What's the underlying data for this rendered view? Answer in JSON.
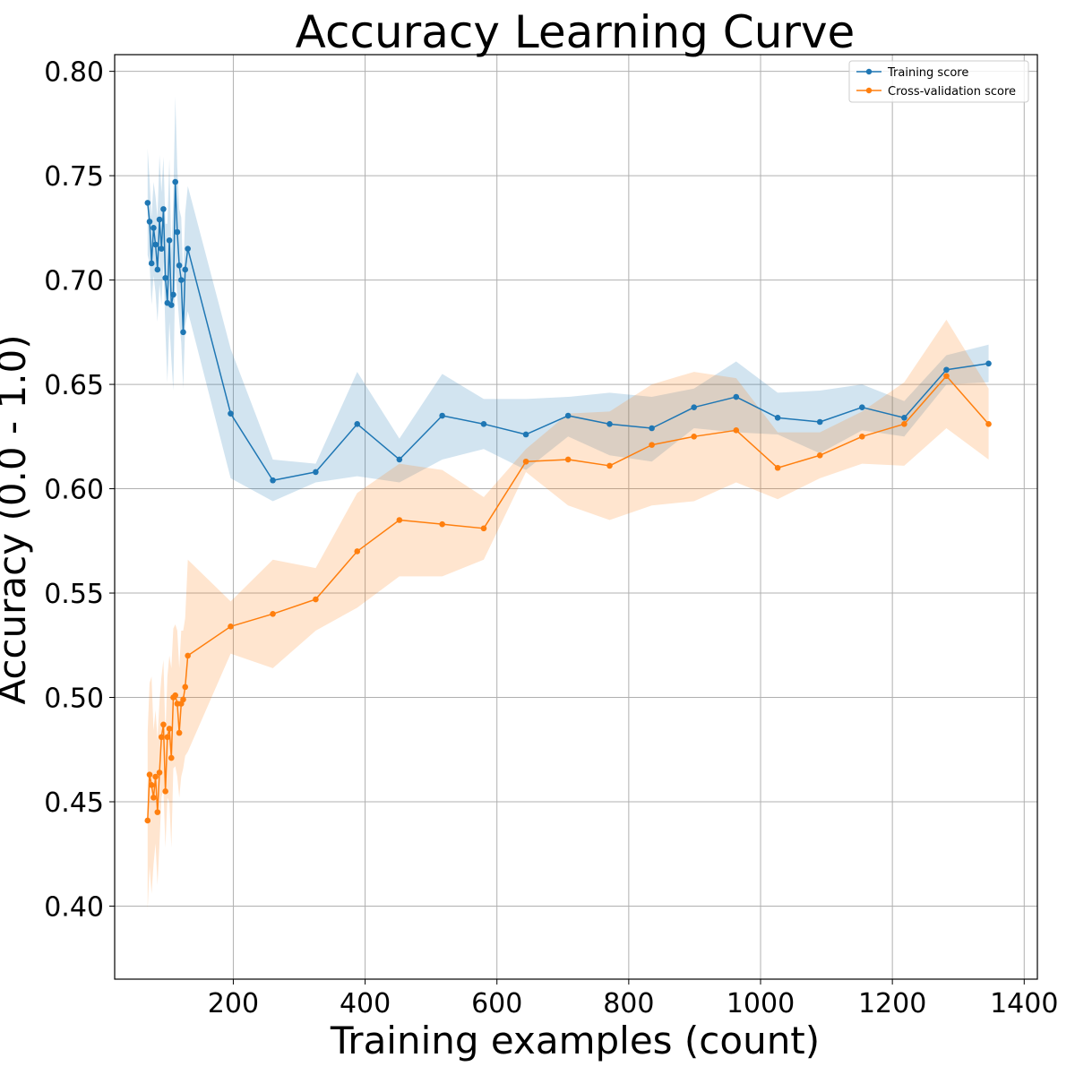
{
  "chart_data": {
    "type": "line",
    "title": "Accuracy Learning Curve",
    "xlabel": "Training examples (count)",
    "ylabel": "Accuracy (0.0 - 1.0)",
    "xlim": [
      20,
      1420
    ],
    "ylim": [
      0.365,
      0.808
    ],
    "xticks": [
      200,
      400,
      600,
      800,
      1000,
      1200,
      1400
    ],
    "yticks": [
      0.4,
      0.45,
      0.5,
      0.55,
      0.6,
      0.65,
      0.7,
      0.75,
      0.8
    ],
    "grid": true,
    "legend_position": "top-right",
    "series": [
      {
        "name": "Training score",
        "color": "#1f77b4",
        "band_color": "#1f77b4",
        "band_opacity": 0.2,
        "points": [
          [
            70,
            0.737,
            0.712,
            0.763
          ],
          [
            73,
            0.728,
            0.708,
            0.748
          ],
          [
            76,
            0.708,
            0.688,
            0.73
          ],
          [
            79,
            0.725,
            0.702,
            0.747
          ],
          [
            82,
            0.717,
            0.694,
            0.74
          ],
          [
            85,
            0.705,
            0.68,
            0.73
          ],
          [
            88,
            0.729,
            0.698,
            0.76
          ],
          [
            91,
            0.715,
            0.688,
            0.742
          ],
          [
            94,
            0.734,
            0.709,
            0.759
          ],
          [
            97,
            0.701,
            0.675,
            0.727
          ],
          [
            100,
            0.689,
            0.651,
            0.727
          ],
          [
            103,
            0.719,
            0.68,
            0.758
          ],
          [
            106,
            0.688,
            0.662,
            0.714
          ],
          [
            109,
            0.693,
            0.647,
            0.739
          ],
          [
            112,
            0.747,
            0.706,
            0.788
          ],
          [
            115,
            0.723,
            0.692,
            0.754
          ],
          [
            118,
            0.707,
            0.68,
            0.734
          ],
          [
            121,
            0.7,
            0.67,
            0.73
          ],
          [
            124,
            0.675,
            0.648,
            0.702
          ],
          [
            127,
            0.705,
            0.678,
            0.732
          ],
          [
            131,
            0.715,
            0.685,
            0.745
          ],
          [
            196,
            0.636,
            0.605,
            0.667
          ],
          [
            260,
            0.604,
            0.594,
            0.614
          ],
          [
            325,
            0.608,
            0.603,
            0.612
          ],
          [
            388,
            0.631,
            0.606,
            0.656
          ],
          [
            452,
            0.614,
            0.603,
            0.624
          ],
          [
            517,
            0.635,
            0.614,
            0.655
          ],
          [
            580,
            0.631,
            0.619,
            0.643
          ],
          [
            644,
            0.626,
            0.609,
            0.643
          ],
          [
            708,
            0.635,
            0.625,
            0.644
          ],
          [
            771,
            0.631,
            0.616,
            0.646
          ],
          [
            835,
            0.629,
            0.613,
            0.644
          ],
          [
            899,
            0.639,
            0.629,
            0.648
          ],
          [
            963,
            0.644,
            0.627,
            0.661
          ],
          [
            1026,
            0.634,
            0.626,
            0.646
          ],
          [
            1090,
            0.632,
            0.617,
            0.647
          ],
          [
            1154,
            0.639,
            0.628,
            0.65
          ],
          [
            1218,
            0.634,
            0.625,
            0.642
          ],
          [
            1282,
            0.657,
            0.65,
            0.664
          ],
          [
            1346,
            0.66,
            0.651,
            0.669
          ]
        ]
      },
      {
        "name": "Cross-validation score",
        "color": "#ff7f0e",
        "band_color": "#ff7f0e",
        "band_opacity": 0.2,
        "points": [
          [
            70,
            0.441,
            0.398,
            0.483
          ],
          [
            73,
            0.463,
            0.419,
            0.507
          ],
          [
            76,
            0.458,
            0.406,
            0.51
          ],
          [
            79,
            0.452,
            0.42,
            0.484
          ],
          [
            82,
            0.462,
            0.43,
            0.494
          ],
          [
            85,
            0.445,
            0.41,
            0.48
          ],
          [
            88,
            0.464,
            0.43,
            0.498
          ],
          [
            91,
            0.481,
            0.452,
            0.51
          ],
          [
            94,
            0.487,
            0.456,
            0.518
          ],
          [
            97,
            0.455,
            0.428,
            0.482
          ],
          [
            100,
            0.481,
            0.452,
            0.51
          ],
          [
            103,
            0.485,
            0.45,
            0.52
          ],
          [
            106,
            0.471,
            0.428,
            0.514
          ],
          [
            109,
            0.5,
            0.466,
            0.533
          ],
          [
            112,
            0.501,
            0.467,
            0.535
          ],
          [
            115,
            0.497,
            0.462,
            0.532
          ],
          [
            118,
            0.483,
            0.452,
            0.514
          ],
          [
            121,
            0.497,
            0.462,
            0.532
          ],
          [
            124,
            0.499,
            0.466,
            0.532
          ],
          [
            127,
            0.505,
            0.472,
            0.538
          ],
          [
            131,
            0.52,
            0.474,
            0.566
          ],
          [
            196,
            0.534,
            0.521,
            0.546
          ],
          [
            260,
            0.54,
            0.514,
            0.566
          ],
          [
            325,
            0.547,
            0.532,
            0.562
          ],
          [
            388,
            0.57,
            0.543,
            0.598
          ],
          [
            452,
            0.585,
            0.558,
            0.612
          ],
          [
            517,
            0.583,
            0.558,
            0.609
          ],
          [
            580,
            0.581,
            0.566,
            0.596
          ],
          [
            644,
            0.613,
            0.608,
            0.619
          ],
          [
            708,
            0.614,
            0.592,
            0.636
          ],
          [
            771,
            0.611,
            0.585,
            0.637
          ],
          [
            835,
            0.621,
            0.592,
            0.65
          ],
          [
            899,
            0.625,
            0.594,
            0.656
          ],
          [
            963,
            0.628,
            0.603,
            0.653
          ],
          [
            1026,
            0.61,
            0.595,
            0.627
          ],
          [
            1090,
            0.616,
            0.605,
            0.627
          ],
          [
            1154,
            0.625,
            0.612,
            0.637
          ],
          [
            1218,
            0.631,
            0.611,
            0.651
          ],
          [
            1282,
            0.654,
            0.629,
            0.681
          ],
          [
            1346,
            0.631,
            0.614,
            0.648
          ]
        ]
      }
    ]
  }
}
